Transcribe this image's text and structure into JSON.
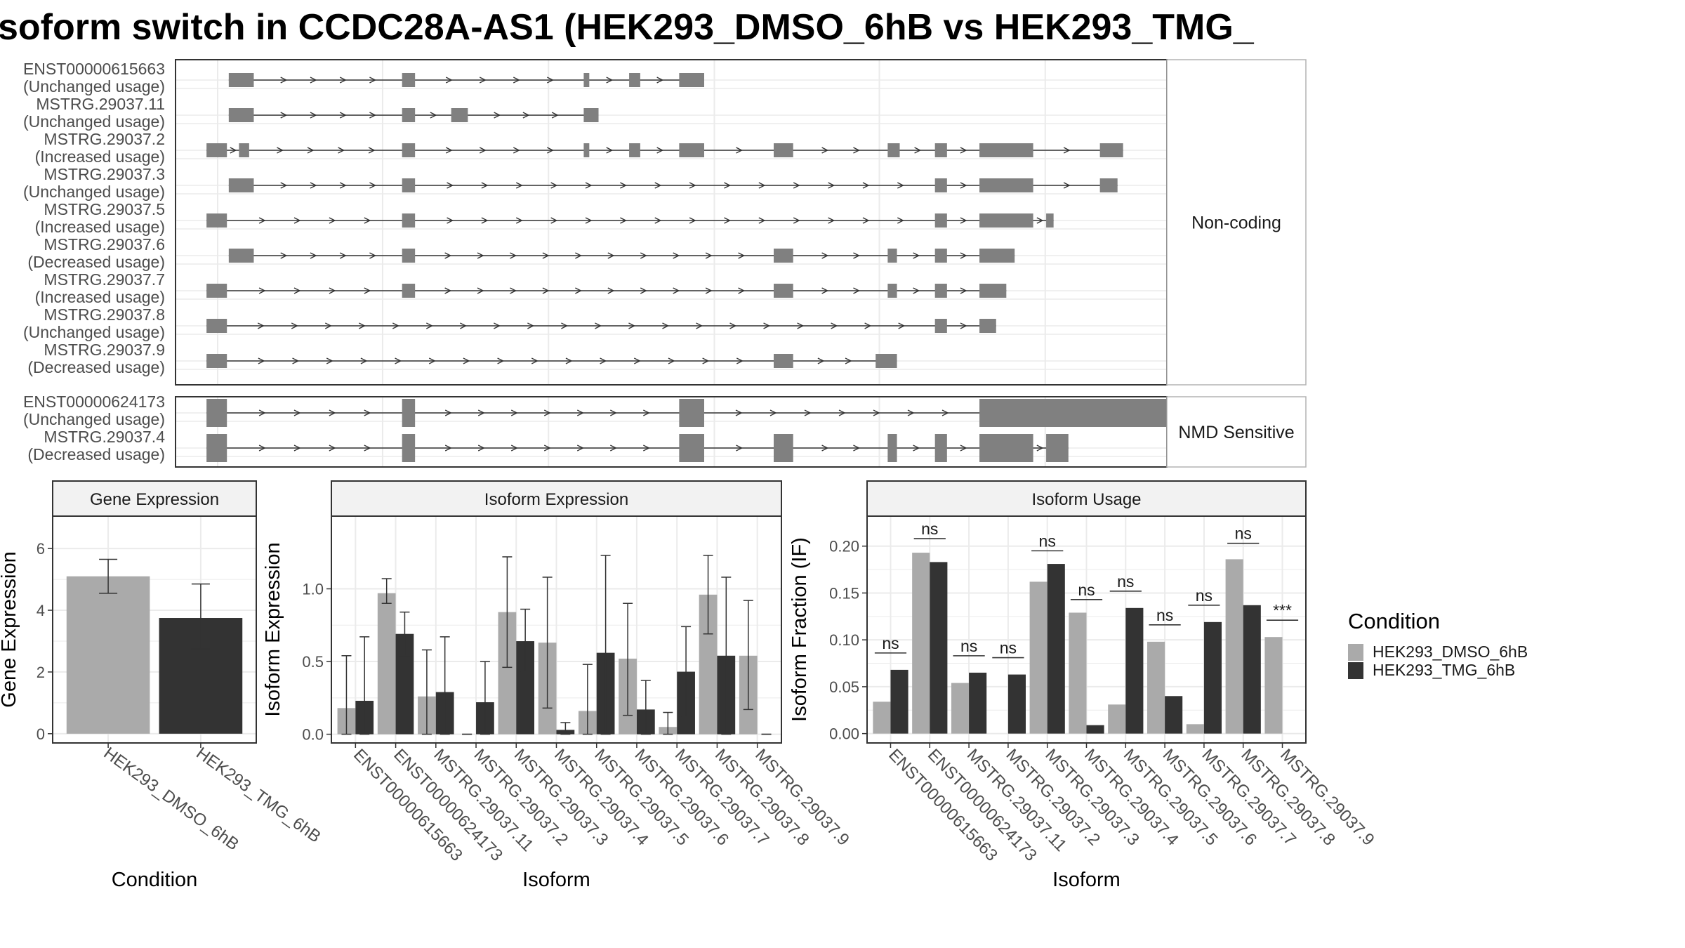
{
  "title": "soform switch in CCDC28A-AS1 (HEK293_DMSO_6hB vs HEK293_TMG_",
  "chart_data": [
    {
      "type": "gene-structure",
      "panels": [
        {
          "strip": "Non-coding",
          "transcripts": [
            {
              "name": "ENST00000615663",
              "usage": "(Unchanged usage)",
              "exons": [
                [
                  0.012,
                  0.039
                ],
                [
                  0.199,
                  0.213
                ],
                [
                  0.395,
                  0.401
                ],
                [
                  0.444,
                  0.456
                ],
                [
                  0.498,
                  0.525
                ]
              ]
            },
            {
              "name": "MSTRG.29037.11",
              "usage": "(Unchanged usage)",
              "exons": [
                [
                  0.012,
                  0.039
                ],
                [
                  0.199,
                  0.213
                ],
                [
                  0.252,
                  0.27
                ],
                [
                  0.395,
                  0.411
                ]
              ]
            },
            {
              "name": "MSTRG.29037.2",
              "usage": "(Increased usage)",
              "exons": [
                [
                  -0.012,
                  0.01
                ],
                [
                  0.023,
                  0.034
                ],
                [
                  0.199,
                  0.213
                ],
                [
                  0.395,
                  0.401
                ],
                [
                  0.444,
                  0.456
                ],
                [
                  0.498,
                  0.525
                ],
                [
                  0.6,
                  0.621
                ],
                [
                  0.723,
                  0.736
                ],
                [
                  0.774,
                  0.787
                ],
                [
                  0.822,
                  0.88
                ],
                [
                  0.952,
                  0.977
                ]
              ]
            },
            {
              "name": "MSTRG.29037.3",
              "usage": "(Unchanged usage)",
              "exons": [
                [
                  0.012,
                  0.039
                ],
                [
                  0.199,
                  0.213
                ],
                [
                  0.774,
                  0.787
                ],
                [
                  0.822,
                  0.88
                ],
                [
                  0.952,
                  0.971
                ]
              ]
            },
            {
              "name": "MSTRG.29037.5",
              "usage": "(Increased usage)",
              "exons": [
                [
                  -0.012,
                  0.01
                ],
                [
                  0.199,
                  0.213
                ],
                [
                  0.774,
                  0.787
                ],
                [
                  0.822,
                  0.88
                ],
                [
                  0.894,
                  0.902
                ]
              ]
            },
            {
              "name": "MSTRG.29037.6",
              "usage": "(Decreased usage)",
              "exons": [
                [
                  0.012,
                  0.039
                ],
                [
                  0.199,
                  0.213
                ],
                [
                  0.6,
                  0.621
                ],
                [
                  0.723,
                  0.733
                ],
                [
                  0.774,
                  0.787
                ],
                [
                  0.822,
                  0.86
                ]
              ]
            },
            {
              "name": "MSTRG.29037.7",
              "usage": "(Increased usage)",
              "exons": [
                [
                  -0.012,
                  0.01
                ],
                [
                  0.199,
                  0.213
                ],
                [
                  0.6,
                  0.621
                ],
                [
                  0.723,
                  0.733
                ],
                [
                  0.774,
                  0.787
                ],
                [
                  0.822,
                  0.851
                ]
              ]
            },
            {
              "name": "MSTRG.29037.8",
              "usage": "(Unchanged usage)",
              "exons": [
                [
                  -0.012,
                  0.01
                ],
                [
                  0.774,
                  0.787
                ],
                [
                  0.822,
                  0.84
                ]
              ]
            },
            {
              "name": "MSTRG.29037.9",
              "usage": "(Decreased usage)",
              "exons": [
                [
                  -0.012,
                  0.01
                ],
                [
                  0.6,
                  0.621
                ],
                [
                  0.71,
                  0.733
                ]
              ]
            }
          ]
        },
        {
          "strip": "NMD Sensitive",
          "transcripts": [
            {
              "name": "ENST00000624173",
              "usage": "(Unchanged usage)",
              "exons": [
                [
                  -0.012,
                  0.01
                ],
                [
                  0.199,
                  0.213
                ],
                [
                  0.498,
                  0.525
                ],
                [
                  0.822,
                  1.037
                ]
              ]
            },
            {
              "name": "MSTRG.29037.4",
              "usage": "(Decreased usage)",
              "exons": [
                [
                  -0.012,
                  0.01
                ],
                [
                  0.199,
                  0.213
                ],
                [
                  0.498,
                  0.525
                ],
                [
                  0.6,
                  0.621
                ],
                [
                  0.723,
                  0.733
                ],
                [
                  0.774,
                  0.787
                ],
                [
                  0.822,
                  0.88
                ],
                [
                  0.894,
                  0.918
                ]
              ]
            }
          ]
        }
      ]
    },
    {
      "type": "bar",
      "title": "Gene Expression",
      "xlabel": "Condition",
      "ylabel": "Gene Expression",
      "categories": [
        "HEK293_DMSO_6hB",
        "HEK293_TMG_6hB"
      ],
      "values": [
        5.1,
        3.75
      ],
      "error_low": [
        4.55,
        2.75
      ],
      "error_high": [
        5.65,
        4.85
      ],
      "yticks": [
        0,
        2,
        4,
        6
      ],
      "ylim": [
        -0.3,
        7.05
      ]
    },
    {
      "type": "bar",
      "title": "Isoform Expression",
      "xlabel": "Isoform",
      "ylabel": "Isoform Expression",
      "categories": [
        "ENST00000615663",
        "ENST00000624173",
        "MSTRG.29037.11",
        "MSTRG.29037.2",
        "MSTRG.29037.3",
        "MSTRG.29037.4",
        "MSTRG.29037.5",
        "MSTRG.29037.6",
        "MSTRG.29037.7",
        "MSTRG.29037.8",
        "MSTRG.29037.9"
      ],
      "yticks": [
        0.0,
        0.5,
        1.0
      ],
      "ytick_labels": [
        "0.0",
        "0.5",
        "1.0"
      ],
      "ylim": [
        -0.06,
        1.5
      ],
      "series": [
        {
          "name": "HEK293_DMSO_6hB",
          "values": [
            0.18,
            0.97,
            0.26,
            0.0,
            0.84,
            0.63,
            0.16,
            0.52,
            0.05,
            0.96,
            0.54
          ],
          "error_low": [
            0.0,
            0.9,
            0.0,
            0.0,
            0.46,
            0.18,
            0.0,
            0.13,
            0.0,
            0.69,
            0.17
          ],
          "error_high": [
            0.54,
            1.07,
            0.58,
            0.0,
            1.22,
            1.08,
            0.48,
            0.9,
            0.15,
            1.23,
            0.92
          ]
        },
        {
          "name": "HEK293_TMG_6hB",
          "values": [
            0.23,
            0.69,
            0.29,
            0.22,
            0.64,
            0.03,
            0.56,
            0.17,
            0.43,
            0.54,
            0.0
          ],
          "error_low": [
            0.0,
            0.54,
            0.0,
            0.0,
            0.43,
            0.0,
            0.0,
            0.0,
            0.12,
            0.0,
            0.0
          ],
          "error_high": [
            0.67,
            0.84,
            0.67,
            0.5,
            0.86,
            0.08,
            1.23,
            0.37,
            0.74,
            1.08,
            0.0
          ]
        }
      ]
    },
    {
      "type": "bar",
      "title": "Isoform Usage",
      "xlabel": "Isoform",
      "ylabel": "Isoform Fraction (IF)",
      "categories": [
        "ENST00000615663",
        "ENST00000624173",
        "MSTRG.29037.11",
        "MSTRG.29037.2",
        "MSTRG.29037.3",
        "MSTRG.29037.4",
        "MSTRG.29037.5",
        "MSTRG.29037.6",
        "MSTRG.29037.7",
        "MSTRG.29037.8",
        "MSTRG.29037.9"
      ],
      "yticks": [
        0.0,
        0.05,
        0.1,
        0.15,
        0.2
      ],
      "ytick_labels": [
        "0.00",
        "0.05",
        "0.10",
        "0.15",
        "0.20"
      ],
      "ylim": [
        -0.01,
        0.232
      ],
      "series": [
        {
          "name": "HEK293_DMSO_6hB",
          "values": [
            0.034,
            0.193,
            0.054,
            0.0,
            0.162,
            0.129,
            0.031,
            0.098,
            0.01,
            0.186,
            0.103
          ]
        },
        {
          "name": "HEK293_TMG_6hB",
          "values": [
            0.068,
            0.183,
            0.065,
            0.063,
            0.181,
            0.009,
            0.134,
            0.04,
            0.119,
            0.137,
            0.0
          ]
        }
      ],
      "significance": [
        "ns",
        "ns",
        "ns",
        "ns",
        "ns",
        "ns",
        "ns",
        "ns",
        "ns",
        "ns",
        "***"
      ],
      "sig_level": [
        0.086,
        0.208,
        0.083,
        0.081,
        0.195,
        0.143,
        0.152,
        0.116,
        0.137,
        0.203,
        0.121
      ]
    }
  ],
  "legend": {
    "title": "Condition",
    "items": [
      {
        "label": "HEK293_DMSO_6hB",
        "color": "#aaaaaa"
      },
      {
        "label": "HEK293_TMG_6hB",
        "color": "#333333"
      }
    ]
  },
  "colors": {
    "dmso": "#aaaaaa",
    "tmg": "#333333",
    "exon": "#808080",
    "grid": "#ebebeb",
    "strip_bg": "#f2f2f2"
  }
}
